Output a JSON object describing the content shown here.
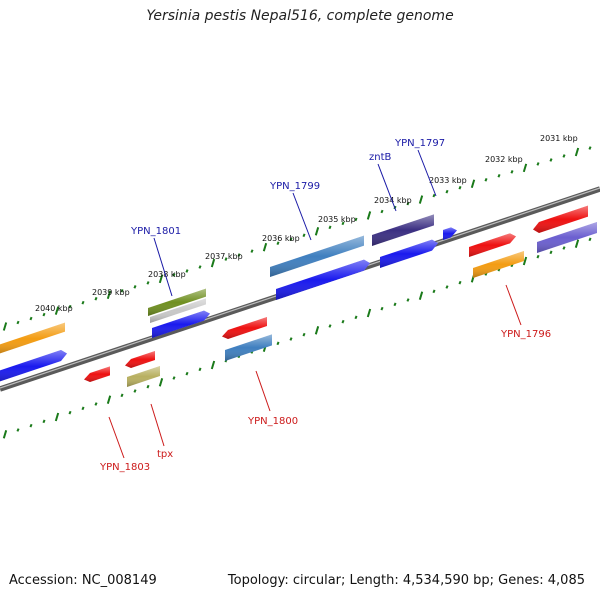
{
  "title": "Yersinia pestis Nepal516, complete genome",
  "footer": {
    "accession": "Accession: NC_008149",
    "stats": "Topology: circular; Length: 4,534,590 bp; Genes: 4,085"
  },
  "colors": {
    "backbone": "#7a7a7a",
    "tick": "#1a7a1a",
    "label_top": "#1a1aa6",
    "label_bottom": "#cc1a1a"
  },
  "ticks": [
    "2031 kbp",
    "2032 kbp",
    "2033 kbp",
    "2034 kbp",
    "2035 kbp",
    "2036 kbp",
    "2037 kbp",
    "2038 kbp",
    "2039 kbp",
    "2040 kbp"
  ],
  "features": [
    {
      "id": "f-orange-left",
      "color": "#f39c12"
    },
    {
      "id": "f-blue-left",
      "color": "#1a1aee"
    },
    {
      "id": "f-red-1803",
      "color": "#ee1111"
    },
    {
      "id": "f-red-tpx-arrow",
      "color": "#ee1111"
    },
    {
      "id": "f-khaki-tpx",
      "color": "#b8b060"
    },
    {
      "id": "f-olive-1801",
      "color": "#6f8f20"
    },
    {
      "id": "f-gray-1801",
      "color": "#c8c8c8"
    },
    {
      "id": "f-blue-1801",
      "color": "#1a1aee"
    },
    {
      "id": "f-red-1800",
      "color": "#ee1111"
    },
    {
      "id": "f-steel-1800",
      "color": "#3f7fbf"
    },
    {
      "id": "f-steel-1799",
      "color": "#3f7fbf"
    },
    {
      "id": "f-blue-1799",
      "color": "#1a1aee"
    },
    {
      "id": "f-purple-zntb",
      "color": "#3b2f82"
    },
    {
      "id": "f-blue-zntb",
      "color": "#1a1aee"
    },
    {
      "id": "f-blue-small",
      "color": "#1a1aee"
    },
    {
      "id": "f-red-1796",
      "color": "#ee1111"
    },
    {
      "id": "f-orange-1796",
      "color": "#f39c12"
    },
    {
      "id": "f-red-right",
      "color": "#ee1111"
    },
    {
      "id": "f-violet-right",
      "color": "#6b5fd0"
    }
  ],
  "labels_top": [
    "YPN_1801",
    "YPN_1799",
    "zntB",
    "YPN_1797"
  ],
  "labels_bottom": [
    "YPN_1803",
    "tpx",
    "YPN_1800",
    "YPN_1796"
  ]
}
